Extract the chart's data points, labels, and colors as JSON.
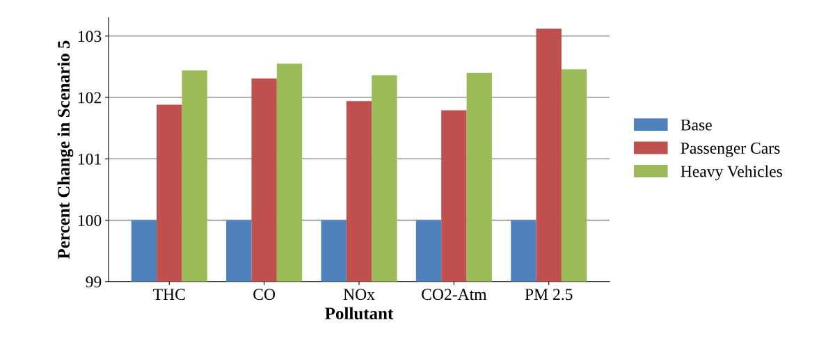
{
  "chart_data": {
    "type": "bar",
    "xlabel": "Pollutant",
    "ylabel": "Percent Change in Scenario 5",
    "categories": [
      "THC",
      "CO",
      "NOx",
      "CO2-Atm",
      "PM 2.5"
    ],
    "series": [
      {
        "name": "Base",
        "color": "#4f81bd",
        "values": [
          100,
          100,
          100,
          100,
          100
        ]
      },
      {
        "name": "Passenger Cars",
        "color": "#c0504d",
        "values": [
          101.88,
          102.31,
          101.94,
          101.79,
          103.12
        ]
      },
      {
        "name": "Heavy Vehicles",
        "color": "#9bbb59",
        "values": [
          102.44,
          102.55,
          102.36,
          102.4,
          102.46
        ]
      }
    ],
    "ylim": [
      99,
      103.3
    ],
    "yticks": [
      99,
      100,
      101,
      102,
      103
    ],
    "grid": "y",
    "legend": "right"
  }
}
